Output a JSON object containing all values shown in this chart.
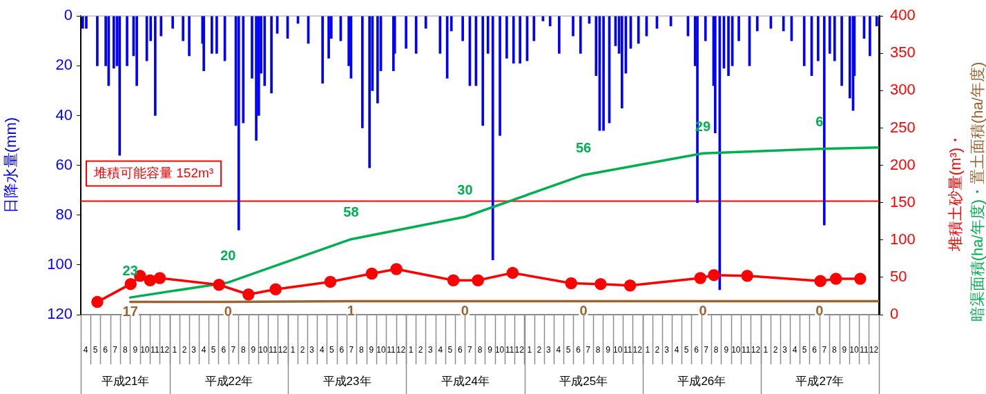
{
  "chart_data": {
    "type": "bar",
    "ylabel": "日降水量(mm)",
    "y2label": "堆積土砂量(m³)・暗渠面積(ha/年度)・置土面積(ha/年度)",
    "xlim": [
      "2009-04-01",
      "2016-01-01"
    ],
    "xticks": [
      {
        "value": "2009-04-16",
        "label": "4"
      },
      {
        "value": "2009-05-16",
        "label": "5"
      },
      {
        "value": "2009-06-16",
        "label": "6"
      },
      {
        "value": "2009-07-16",
        "label": "7"
      },
      {
        "value": "2009-08-16",
        "label": "8"
      },
      {
        "value": "2009-09-16",
        "label": "9"
      },
      {
        "value": "2009-10-16",
        "label": "10"
      },
      {
        "value": "2009-11-16",
        "label": "11"
      },
      {
        "value": "2009-12-16",
        "label": "12"
      },
      {
        "value": "2010-01-16",
        "label": "1"
      },
      {
        "value": "2010-02-15",
        "label": "2"
      },
      {
        "value": "2010-03-16",
        "label": "3"
      },
      {
        "value": "2010-04-16",
        "label": "4"
      },
      {
        "value": "2010-05-16",
        "label": "5"
      },
      {
        "value": "2010-06-16",
        "label": "6"
      },
      {
        "value": "2010-07-16",
        "label": "7"
      },
      {
        "value": "2010-08-16",
        "label": "8"
      },
      {
        "value": "2010-09-16",
        "label": "9"
      },
      {
        "value": "2010-10-16",
        "label": "10"
      },
      {
        "value": "2010-11-16",
        "label": "11"
      },
      {
        "value": "2010-12-16",
        "label": "12"
      },
      {
        "value": "2011-01-16",
        "label": "1"
      },
      {
        "value": "2011-02-15",
        "label": "2"
      },
      {
        "value": "2011-03-16",
        "label": "3"
      },
      {
        "value": "2011-04-16",
        "label": "4"
      },
      {
        "value": "2011-05-16",
        "label": "5"
      },
      {
        "value": "2011-06-16",
        "label": "6"
      },
      {
        "value": "2011-07-16",
        "label": "7"
      },
      {
        "value": "2011-08-16",
        "label": "8"
      },
      {
        "value": "2011-09-16",
        "label": "9"
      },
      {
        "value": "2011-10-16",
        "label": "10"
      },
      {
        "value": "2011-11-16",
        "label": "11"
      },
      {
        "value": "2011-12-16",
        "label": "12"
      },
      {
        "value": "2012-01-16",
        "label": "1"
      },
      {
        "value": "2012-02-15",
        "label": "2"
      },
      {
        "value": "2012-03-16",
        "label": "3"
      },
      {
        "value": "2012-04-16",
        "label": "4"
      },
      {
        "value": "2012-05-16",
        "label": "5"
      },
      {
        "value": "2012-06-16",
        "label": "6"
      },
      {
        "value": "2012-07-16",
        "label": "7"
      },
      {
        "value": "2012-08-16",
        "label": "8"
      },
      {
        "value": "2012-09-16",
        "label": "9"
      },
      {
        "value": "2012-10-16",
        "label": "10"
      },
      {
        "value": "2012-11-16",
        "label": "11"
      },
      {
        "value": "2012-12-16",
        "label": "12"
      },
      {
        "value": "2013-01-16",
        "label": "1"
      },
      {
        "value": "2013-02-15",
        "label": "2"
      },
      {
        "value": "2013-03-16",
        "label": "3"
      },
      {
        "value": "2013-04-16",
        "label": "4"
      },
      {
        "value": "2013-05-16",
        "label": "5"
      },
      {
        "value": "2013-06-16",
        "label": "6"
      },
      {
        "value": "2013-07-16",
        "label": "7"
      },
      {
        "value": "2013-08-16",
        "label": "8"
      },
      {
        "value": "2013-09-16",
        "label": "9"
      },
      {
        "value": "2013-10-16",
        "label": "10"
      },
      {
        "value": "2013-11-16",
        "label": "11"
      },
      {
        "value": "2013-12-16",
        "label": "12"
      },
      {
        "value": "2014-01-16",
        "label": "1"
      },
      {
        "value": "2014-02-15",
        "label": "2"
      },
      {
        "value": "2014-03-16",
        "label": "3"
      },
      {
        "value": "2014-04-16",
        "label": "4"
      },
      {
        "value": "2014-05-16",
        "label": "5"
      },
      {
        "value": "2014-06-16",
        "label": "6"
      },
      {
        "value": "2014-07-16",
        "label": "7"
      },
      {
        "value": "2014-08-16",
        "label": "8"
      },
      {
        "value": "2014-09-16",
        "label": "9"
      },
      {
        "value": "2014-10-16",
        "label": "10"
      },
      {
        "value": "2014-11-16",
        "label": "11"
      },
      {
        "value": "2014-12-16",
        "label": "12"
      },
      {
        "value": "2015-01-16",
        "label": "1"
      },
      {
        "value": "2015-02-15",
        "label": "2"
      },
      {
        "value": "2015-03-16",
        "label": "3"
      },
      {
        "value": "2015-04-16",
        "label": "4"
      },
      {
        "value": "2015-05-16",
        "label": "5"
      },
      {
        "value": "2015-06-16",
        "label": "6"
      },
      {
        "value": "2015-07-16",
        "label": "7"
      },
      {
        "value": "2015-08-16",
        "label": "8"
      },
      {
        "value": "2015-09-16",
        "label": "9"
      },
      {
        "value": "2015-10-16",
        "label": "10"
      },
      {
        "value": "2015-11-16",
        "label": "11"
      },
      {
        "value": "2015-12-16",
        "label": "12"
      }
    ],
    "ylim": [
      120,
      0
    ],
    "yticks": [
      0,
      20,
      40,
      60,
      80,
      100,
      120
    ],
    "y2lim": [
      0,
      400
    ],
    "y2ticks": [
      0,
      50,
      100,
      150,
      200,
      250,
      300,
      350,
      400
    ],
    "ref_lines": [
      {
        "axis": "y2",
        "value": 152,
        "label": "堆積可能容量 152m³",
        "color": "#ff0000"
      }
    ],
    "series": [
      {
        "axis": "y",
        "color": "#0000ff",
        "x": [
          "2009-04-07",
          "2009-04-18",
          "2009-05-22",
          "2009-06-17",
          "2009-06-26",
          "2009-07-12",
          "2009-07-22",
          "2009-07-30",
          "2009-08-22",
          "2009-09-11",
          "2009-09-21",
          "2009-10-22",
          "2009-11-03",
          "2009-11-17",
          "2009-12-05",
          "2010-01-10",
          "2010-02-11",
          "2010-03-02",
          "2010-04-12",
          "2010-04-16",
          "2010-05-11",
          "2010-05-26",
          "2010-06-20",
          "2010-07-24",
          "2010-08-02",
          "2010-08-16",
          "2010-09-12",
          "2010-09-25",
          "2010-10-03",
          "2010-10-10",
          "2010-10-21",
          "2010-11-11",
          "2010-11-29",
          "2010-12-31",
          "2011-02-01",
          "2011-03-05",
          "2011-04-18",
          "2011-05-07",
          "2011-05-15",
          "2011-06-13",
          "2011-07-08",
          "2011-07-15",
          "2011-08-19",
          "2011-09-10",
          "2011-09-19",
          "2011-10-05",
          "2011-10-15",
          "2011-11-23",
          "2011-11-27",
          "2012-01-01",
          "2012-02-01",
          "2012-03-02",
          "2012-04-15",
          "2012-05-07",
          "2012-05-20",
          "2012-06-24",
          "2012-07-16",
          "2012-08-04",
          "2012-08-25",
          "2012-09-10",
          "2012-09-25",
          "2012-10-17",
          "2012-11-07",
          "2012-11-28",
          "2012-12-18",
          "2013-01-09",
          "2013-01-30",
          "2013-02-27",
          "2013-03-21",
          "2013-04-18",
          "2013-05-31",
          "2013-06-23",
          "2013-07-20",
          "2013-08-10",
          "2013-08-21",
          "2013-09-02",
          "2013-09-20",
          "2013-10-09",
          "2013-10-20",
          "2013-10-29",
          "2013-11-10",
          "2013-11-25",
          "2013-12-19",
          "2014-01-13",
          "2014-02-14",
          "2014-03-29",
          "2014-05-21",
          "2014-06-12",
          "2014-06-19",
          "2014-07-14",
          "2014-08-08",
          "2014-08-13",
          "2014-08-27",
          "2014-09-09",
          "2014-09-23",
          "2014-10-05",
          "2014-10-25",
          "2014-11-27",
          "2014-12-21",
          "2015-02-01",
          "2015-03-12",
          "2015-04-06",
          "2015-05-15",
          "2015-06-07",
          "2015-06-27",
          "2015-07-16",
          "2015-08-02",
          "2015-08-17",
          "2015-09-08",
          "2015-10-03",
          "2015-10-13",
          "2015-10-17",
          "2015-11-16",
          "2015-12-04",
          "2015-12-25"
        ],
        "values": [
          5,
          5,
          20,
          20,
          28,
          21,
          20,
          56,
          20,
          16,
          28,
          18,
          10,
          40,
          8,
          5,
          10,
          16,
          11,
          22,
          15,
          15,
          18,
          44,
          86,
          43,
          25,
          50,
          40,
          23,
          28,
          31,
          7,
          9,
          3,
          11,
          27,
          17,
          9,
          10,
          20,
          25,
          45,
          61,
          30,
          35,
          22,
          22,
          15,
          13,
          15,
          5,
          15,
          25,
          6,
          10,
          28,
          28,
          44,
          15,
          98,
          48,
          17,
          19,
          19,
          18,
          10,
          2,
          4,
          15,
          8,
          15,
          3,
          24,
          46,
          46,
          43,
          12,
          15,
          37,
          23,
          13,
          11,
          8,
          5,
          4,
          8,
          20,
          75,
          10,
          28,
          47,
          110,
          21,
          24,
          20,
          10,
          20,
          6,
          5,
          6,
          10,
          20,
          24,
          18,
          84,
          15,
          18,
          28,
          33,
          38,
          24,
          9,
          16,
          4
        ]
      },
      {
        "type": "line",
        "axis": "y2",
        "color": "#ff0000",
        "marker": "circle",
        "x": [
          "2009-05-22",
          "2009-09-02",
          "2009-10-01",
          "2009-11-01",
          "2009-12-01",
          "2010-06-02",
          "2010-09-01",
          "2010-11-24",
          "2011-05-12",
          "2011-09-17",
          "2011-12-02",
          "2012-05-26",
          "2012-08-10",
          "2012-11-25",
          "2013-05-25",
          "2013-08-24",
          "2013-11-23",
          "2014-06-28",
          "2014-08-09",
          "2014-11-20",
          "2015-07-04",
          "2015-08-21",
          "2015-11-04"
        ],
        "values": [
          17,
          41,
          52,
          46,
          49,
          40,
          27,
          34,
          44,
          55,
          61,
          46,
          46,
          56,
          42,
          41,
          39,
          49,
          53,
          52,
          45,
          48,
          48
        ]
      },
      {
        "type": "line",
        "axis": "y2",
        "color": "#00b050",
        "marker": "none",
        "x": [
          "2009-09-01",
          "2010-06-30",
          "2011-07-15",
          "2012-07-01",
          "2013-07-02",
          "2014-07-06",
          "2015-07-01",
          "2016-01-01"
        ],
        "values": [
          23,
          43,
          101,
          131,
          187,
          216,
          222,
          224
        ]
      },
      {
        "type": "line",
        "axis": "y2",
        "color": "#996633",
        "marker": "none",
        "x": [
          "2009-09-01",
          "2010-06-30",
          "2011-07-15",
          "2012-07-01",
          "2013-07-02",
          "2014-07-06",
          "2015-07-01",
          "2016-01-01"
        ],
        "values": [
          17,
          17,
          18,
          18,
          18,
          18,
          18,
          18
        ]
      }
    ],
    "annotations": [
      "23",
      "20",
      "58",
      "30",
      "56",
      "29",
      "6",
      null,
      "17",
      "0",
      "1",
      "0",
      "0",
      "0",
      "0",
      null,
      "平成21年",
      "平成22年",
      "平成23年",
      "平成24年",
      "平成25年",
      "平成26年",
      "平成27年"
    ]
  }
}
